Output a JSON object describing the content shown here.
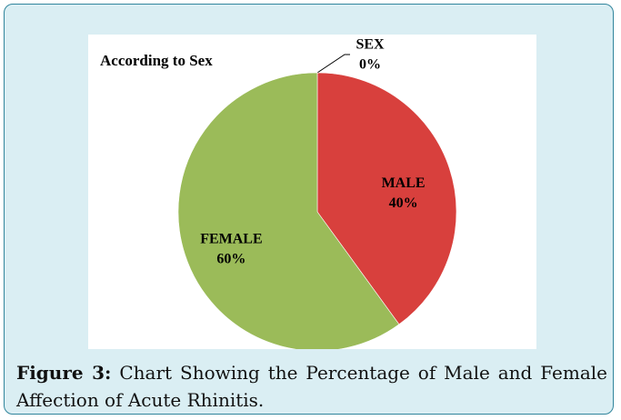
{
  "chart_data": {
    "type": "pie",
    "title": "According to Sex",
    "categories": [
      "SEX",
      "MALE",
      "FEMALE"
    ],
    "values": [
      0,
      40,
      60
    ],
    "value_labels": [
      "0%",
      "40%",
      "60%"
    ],
    "colors": [
      "#4f81bd",
      "#d8403d",
      "#9bbb59"
    ]
  },
  "figure": {
    "label": "Figure 3:",
    "caption": "Chart Showing the Percentage of Male and Female Affection of Acute Rhinitis."
  }
}
